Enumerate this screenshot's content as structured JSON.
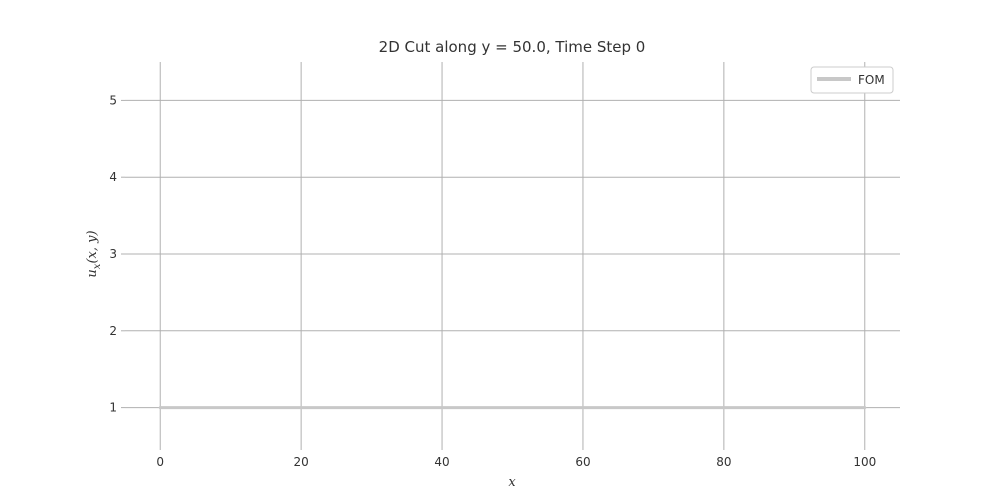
{
  "chart_data": {
    "type": "line",
    "title": "2D Cut along y = 50.0, Time Step 0",
    "xlabel": "x",
    "ylabel": "u_x(x, y)",
    "xlim": [
      -5,
      105
    ],
    "ylim": [
      0.5,
      5.5
    ],
    "xticks": [
      0,
      20,
      40,
      60,
      80,
      100
    ],
    "yticks": [
      1,
      2,
      3,
      4,
      5
    ],
    "grid": true,
    "legend_position": "top-right",
    "series": [
      {
        "name": "FOM",
        "color": "#c8c8c8",
        "x": [
          0,
          20,
          40,
          60,
          80,
          100
        ],
        "y": [
          1,
          1,
          1,
          1,
          1,
          1
        ]
      }
    ]
  }
}
